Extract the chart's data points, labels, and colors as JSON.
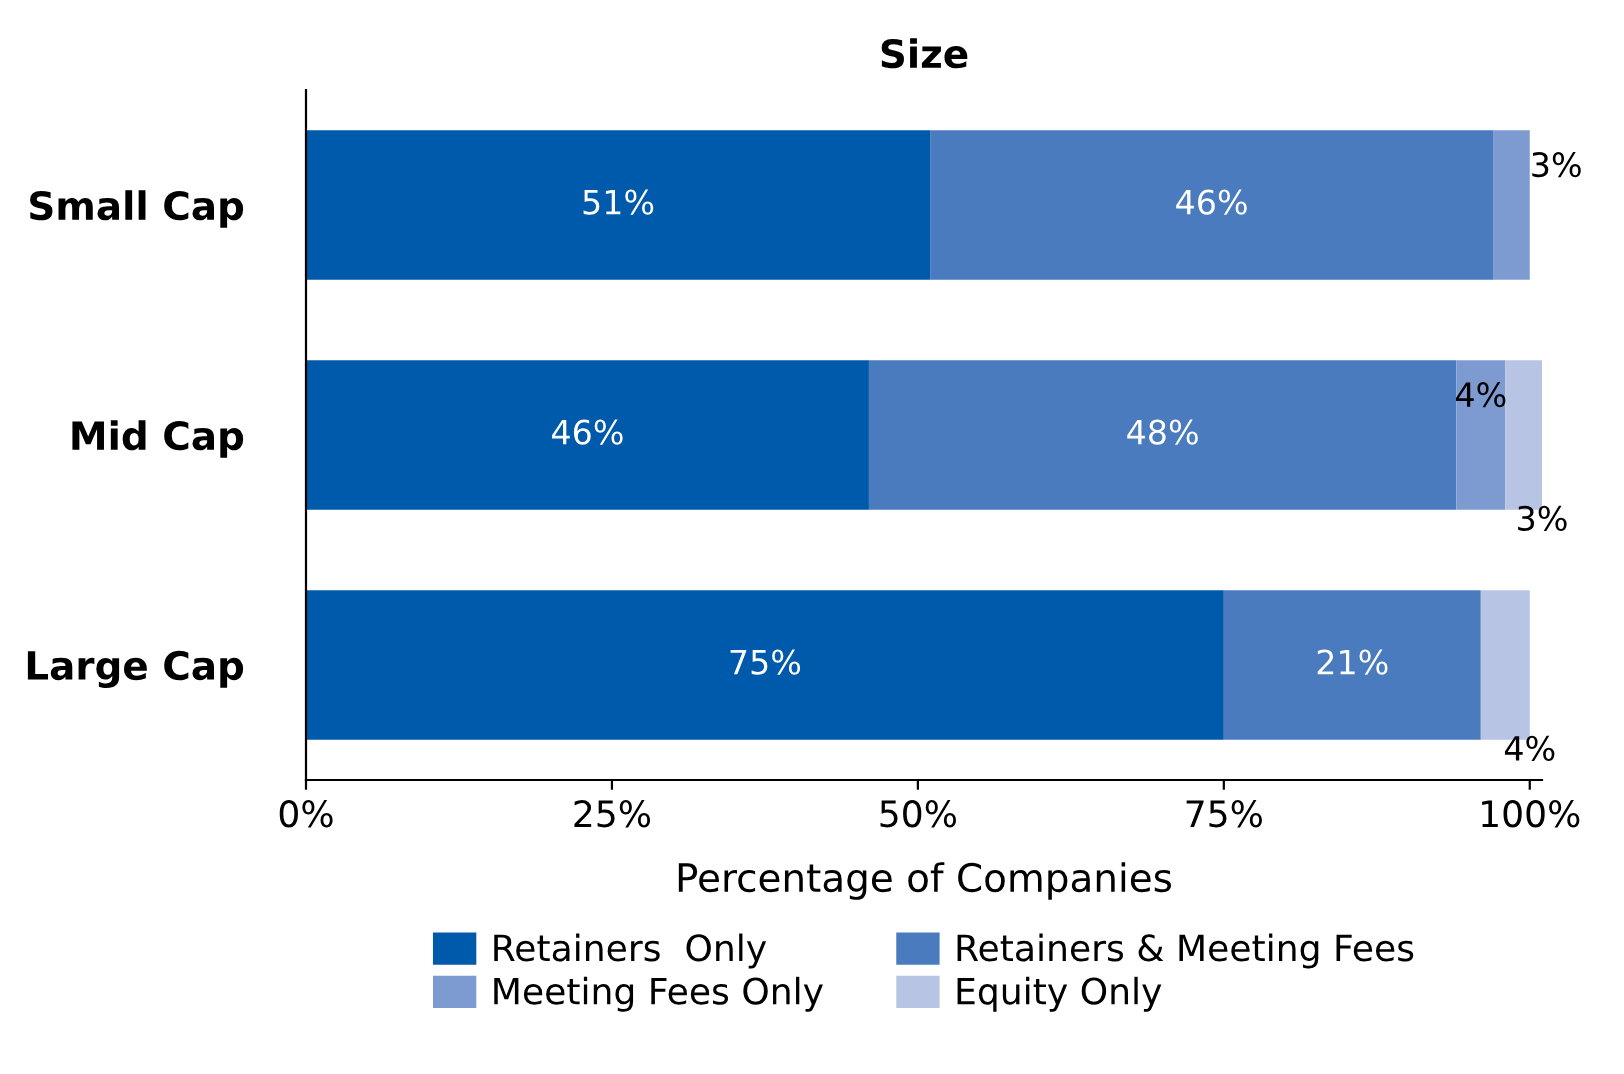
{
  "chart_data": {
    "type": "bar",
    "orientation": "horizontal",
    "stacked": true,
    "title": "Size",
    "xlabel": "Percentage of Companies",
    "categories": [
      "Small Cap",
      "Mid Cap",
      "Large Cap"
    ],
    "series": [
      {
        "name": "Retainers  Only",
        "color": "#005aab",
        "values": [
          51,
          46,
          75
        ],
        "value_labels": [
          "51%",
          "46%",
          "75%"
        ]
      },
      {
        "name": "Retainers & Meeting Fees",
        "color": "#4a7bbf",
        "values": [
          46,
          48,
          21
        ],
        "value_labels": [
          "46%",
          "48%",
          "21%"
        ]
      },
      {
        "name": "Meeting Fees Only",
        "color": "#7d9bd0",
        "values": [
          3,
          4,
          null
        ],
        "value_labels": [
          "3%",
          "4%",
          null
        ]
      },
      {
        "name": "Equity Only",
        "color": "#b8c4e4",
        "values": [
          null,
          3,
          4
        ],
        "value_labels": [
          null,
          "3%",
          "4%"
        ]
      }
    ],
    "xlim": [
      0,
      101
    ],
    "xticks": [
      {
        "value": 0,
        "label": "0%"
      },
      {
        "value": 25,
        "label": "25%"
      },
      {
        "value": 50,
        "label": "50%"
      },
      {
        "value": 75,
        "label": "75%"
      },
      {
        "value": 100,
        "label": "100%"
      }
    ],
    "grid": false,
    "legend": "bottom"
  }
}
